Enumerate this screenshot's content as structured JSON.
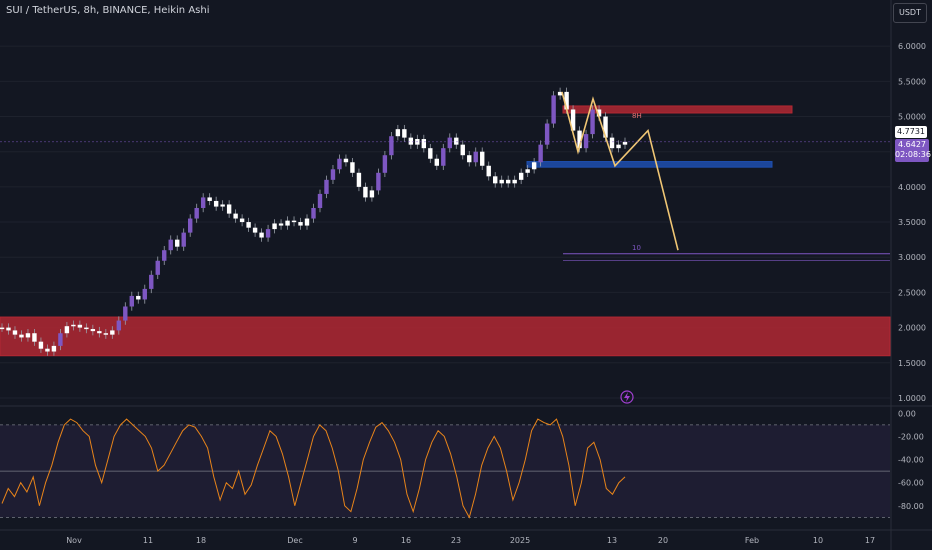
{
  "header": {
    "symbol_line": "SUI / TetherUS, 8h, BINANCE, Heikin Ashi",
    "currency": "USDT"
  },
  "badges": {
    "last_price": "4.7731",
    "current_price": "4.6427",
    "countdown": "02:08:36"
  },
  "annotations": {
    "top_zone_label": "8H",
    "target_label": "10"
  },
  "colors": {
    "background": "#131722",
    "candle_up": "#ffffff",
    "candle_impulse": "#7e57c2",
    "supply_zone": "#b22833",
    "demand_zone": "#1e4fb0",
    "projection": "#f0c674",
    "oscillator": "#e8841a"
  },
  "chart_data": [
    {
      "type": "candlestick",
      "title": "",
      "price_axis": {
        "ticks": [
          "6.0000",
          "5.5000",
          "5.0000",
          "4.5000",
          "4.0000",
          "3.5000",
          "3.0000",
          "2.5000",
          "2.0000",
          "1.5000",
          "1.0000"
        ],
        "ylim": [
          0.9,
          6.4
        ]
      },
      "time_axis": {
        "labels": [
          "Nov",
          "11",
          "18",
          "Dec",
          "9",
          "16",
          "23",
          "2025",
          "13",
          "20",
          "Feb",
          "10",
          "17"
        ]
      },
      "series": [
        {
          "values": [
            2.0,
            1.96,
            1.9,
            1.86,
            1.92,
            1.8,
            1.7,
            1.66,
            1.74,
            1.92,
            2.02,
            2.04,
            2.0,
            1.98,
            1.95,
            1.92,
            1.9,
            1.96,
            2.1,
            2.3,
            2.45,
            2.4,
            2.55,
            2.75,
            2.95,
            3.1,
            3.25,
            3.15,
            3.35,
            3.55,
            3.7,
            3.85,
            3.8,
            3.72,
            3.75,
            3.62,
            3.55,
            3.5,
            3.42,
            3.35,
            3.28,
            3.4,
            3.48,
            3.45,
            3.52,
            3.5,
            3.45,
            3.55,
            3.7,
            3.9,
            4.1,
            4.25,
            4.4,
            4.35,
            4.2,
            4.0,
            3.85,
            3.95,
            4.2,
            4.45,
            4.72,
            4.82,
            4.7,
            4.6,
            4.68,
            4.55,
            4.4,
            4.3,
            4.55,
            4.7,
            4.6,
            4.45,
            4.35,
            4.5,
            4.3,
            4.15,
            4.05,
            4.1,
            4.05,
            4.1,
            4.2,
            4.25,
            4.35,
            4.6,
            4.9,
            5.3,
            5.35,
            5.1,
            4.8,
            4.55,
            4.75,
            5.1,
            5.0,
            4.7,
            4.55,
            4.6,
            4.64
          ]
        }
      ],
      "zones": [
        {
          "label": "",
          "from": 1.6,
          "to": 2.15
        },
        {
          "label": "8H",
          "from": 5.05,
          "to": 5.15
        },
        {
          "label": "",
          "from": 4.28,
          "to": 4.36
        }
      ],
      "projection_path": [
        5.35,
        4.5,
        5.25,
        4.3,
        4.8,
        3.1
      ],
      "target_level": 3.05
    },
    {
      "type": "line",
      "title": "",
      "y_axis": {
        "ticks": [
          "0.00",
          "-20.00",
          "-40.00",
          "-60.00",
          "-80.00"
        ],
        "ylim": [
          -94,
          2
        ]
      },
      "reference_lines": [
        -10,
        -50,
        -90
      ],
      "series": [
        {
          "values": [
            -78,
            -65,
            -72,
            -60,
            -68,
            -55,
            -80,
            -60,
            -45,
            -25,
            -10,
            -5,
            -8,
            -15,
            -20,
            -45,
            -60,
            -40,
            -20,
            -10,
            -5,
            -10,
            -15,
            -20,
            -30,
            -50,
            -45,
            -35,
            -25,
            -15,
            -10,
            -12,
            -20,
            -30,
            -55,
            -75,
            -60,
            -65,
            -50,
            -70,
            -62,
            -45,
            -30,
            -15,
            -20,
            -35,
            -55,
            -80,
            -60,
            -40,
            -20,
            -10,
            -15,
            -30,
            -50,
            -80,
            -85,
            -65,
            -40,
            -25,
            -12,
            -8,
            -15,
            -25,
            -40,
            -70,
            -85,
            -65,
            -40,
            -25,
            -15,
            -20,
            -35,
            -55,
            -80,
            -90,
            -70,
            -45,
            -30,
            -20,
            -30,
            -50,
            -75,
            -60,
            -40,
            -15,
            -5,
            -8,
            -10,
            -5,
            -20,
            -45,
            -80,
            -60,
            -30,
            -25,
            -40,
            -65,
            -70,
            -60,
            -55
          ]
        }
      ]
    }
  ]
}
